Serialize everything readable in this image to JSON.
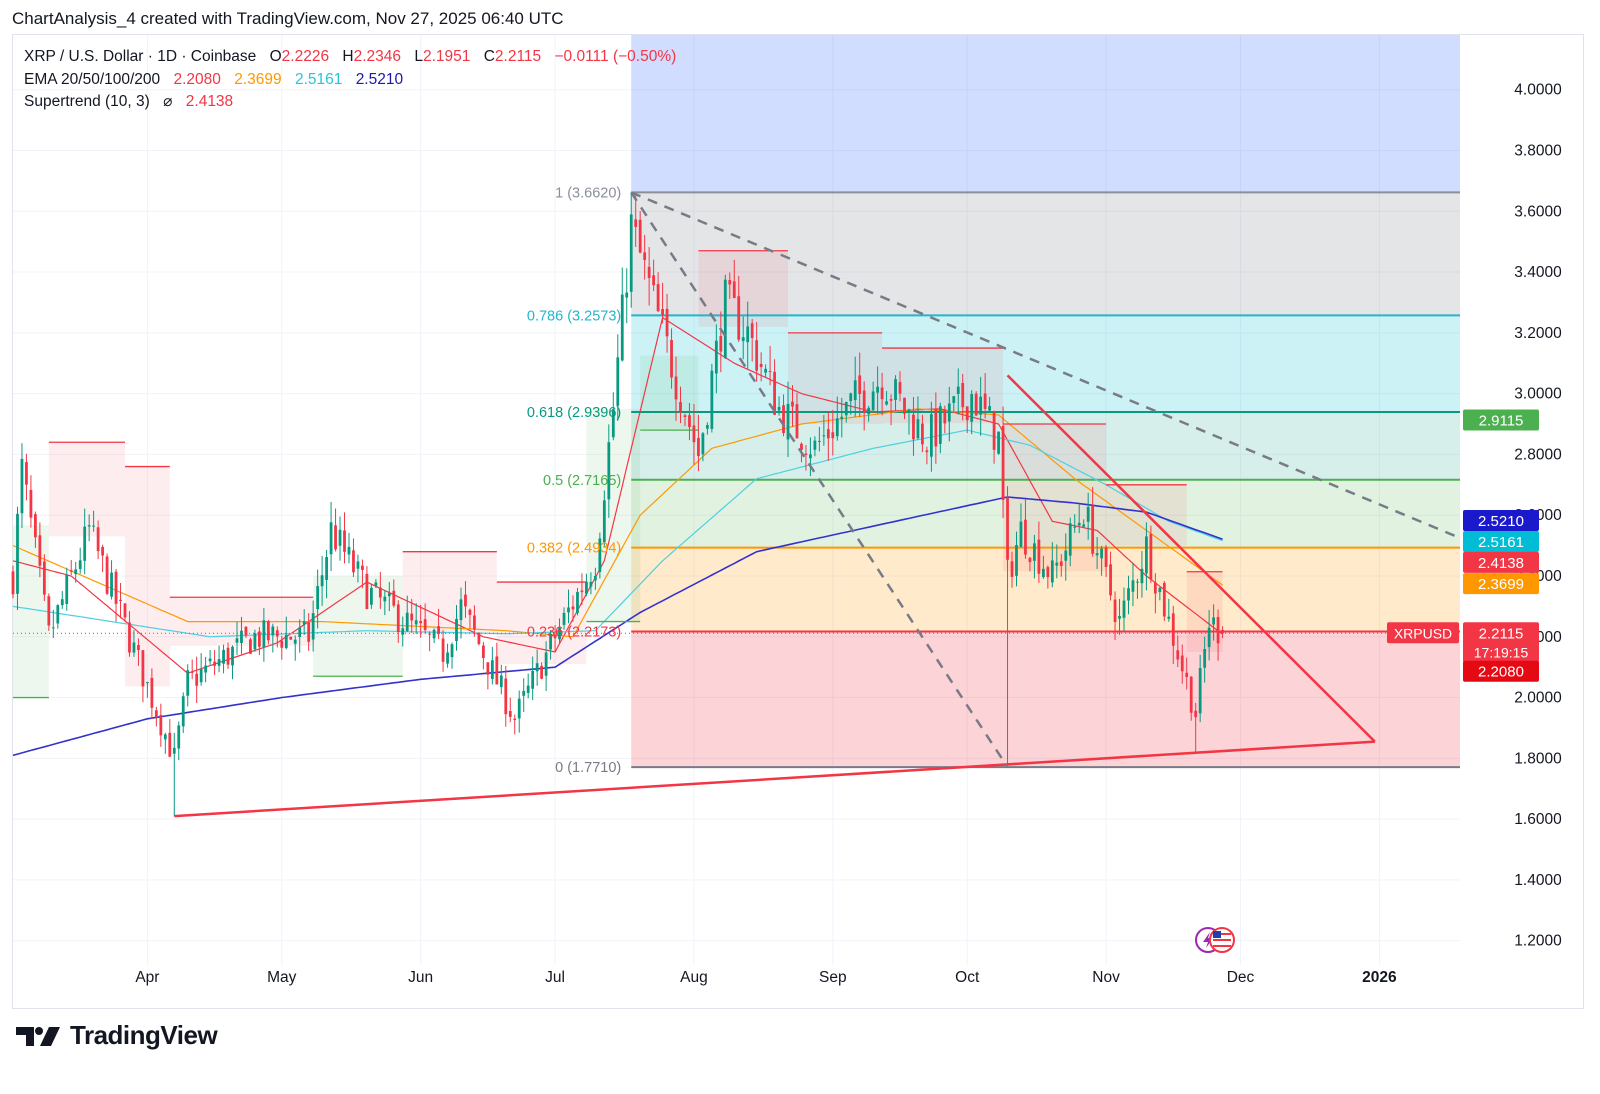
{
  "header": {
    "text": "ChartAnalysis_4 created with TradingView.com, Nov 27, 2025 06:40 UTC"
  },
  "legend": {
    "symbol": "XRP / U.S. Dollar · 1D · Coinbase",
    "o_label": "O",
    "o_val": "2.2226",
    "h_label": "H",
    "h_val": "2.2346",
    "l_label": "L",
    "l_val": "2.1951",
    "c_label": "C",
    "c_val": "2.2115",
    "change": "−0.0111 (−0.50%)",
    "ema_label": "EMA 20/50/100/200",
    "ema20": "2.2080",
    "ema50": "2.3699",
    "ema100": "2.5161",
    "ema200": "2.5210",
    "st_label": "Supertrend (10, 3)",
    "st_symbol": "⌀",
    "st_val": "2.4138"
  },
  "brand": {
    "name": "TradingView",
    "logo_icon": "tradingview-logo-icon"
  },
  "colors": {
    "up": "#089981",
    "down": "#f23645",
    "ema20": "#f23645",
    "ema50": "#ff9800",
    "ema100": "#4dd0e1",
    "ema200": "#3333cc",
    "supertrend_up": "#4caf50",
    "supertrend_down": "#f23645"
  },
  "chart_data": {
    "type": "candlestick",
    "title": "XRP / U.S. Dollar · 1D · Coinbase",
    "ylim": [
      1.12,
      4.18
    ],
    "price_scale": [
      "4.0000",
      "3.8000",
      "3.6000",
      "3.4000",
      "3.2000",
      "3.0000",
      "2.8000",
      "2.6000",
      "2.4000",
      "2.2000",
      "2.0000",
      "1.8000",
      "1.6000",
      "1.4000",
      "1.2000"
    ],
    "x_axis": [
      {
        "label": "Apr",
        "x": "2025-04-01"
      },
      {
        "label": "May",
        "x": "2025-05-01"
      },
      {
        "label": "Jun",
        "x": "2025-06-01"
      },
      {
        "label": "Jul",
        "x": "2025-07-01"
      },
      {
        "label": "Aug",
        "x": "2025-08-01"
      },
      {
        "label": "Sep",
        "x": "2025-09-01"
      },
      {
        "label": "Oct",
        "x": "2025-10-01"
      },
      {
        "label": "Nov",
        "x": "2025-11-01"
      },
      {
        "label": "Dec",
        "x": "2025-12-01"
      },
      {
        "label": "2026",
        "x": "2026-01-01"
      }
    ],
    "date_range": [
      "2025-03-02",
      "2026-01-19"
    ],
    "fib_levels": [
      {
        "ratio": "1",
        "price": 3.662,
        "label": "1 (3.6620)",
        "color": "#8a8f9c"
      },
      {
        "ratio": "0.786",
        "price": 3.2573,
        "label": "0.786 (3.2573)",
        "color": "#22b5cc"
      },
      {
        "ratio": "0.618",
        "price": 2.9396,
        "label": "0.618 (2.9396)",
        "color": "#089981"
      },
      {
        "ratio": "0.5",
        "price": 2.7165,
        "label": "0.5 (2.7165)",
        "color": "#4caf50"
      },
      {
        "ratio": "0.382",
        "price": 2.4934,
        "label": "0.382 (2.4934)",
        "color": "#ff9800"
      },
      {
        "ratio": "0.236",
        "price": 2.2173,
        "label": "0.236 (2.2173)",
        "color": "#f23645"
      },
      {
        "ratio": "0",
        "price": 1.771,
        "label": "0 (1.7710)",
        "color": "#787b86"
      }
    ],
    "fib_start": "2025-07-18",
    "fib_end": "2026-01-19",
    "fib_zones": [
      {
        "from": 3.662,
        "to": 4.18,
        "color": "rgba(41,98,255,0.22)"
      },
      {
        "from": 3.2573,
        "to": 3.662,
        "color": "rgba(120,123,134,0.20)"
      },
      {
        "from": 2.9396,
        "to": 3.2573,
        "color": "rgba(0,188,212,0.20)"
      },
      {
        "from": 2.7165,
        "to": 2.9396,
        "color": "rgba(8,153,129,0.16)"
      },
      {
        "from": 2.4934,
        "to": 2.7165,
        "color": "rgba(76,175,80,0.17)"
      },
      {
        "from": 2.2173,
        "to": 2.4934,
        "color": "rgba(255,152,0,0.20)"
      },
      {
        "from": 1.771,
        "to": 2.2173,
        "color": "rgba(242,54,69,0.22)"
      }
    ],
    "badges": [
      {
        "value": "2.9115",
        "price": 2.9115,
        "color": "#4caf50"
      },
      {
        "value": "2.5210",
        "price": 2.581,
        "color": "#1a1acc"
      },
      {
        "value": "2.5161",
        "price": 2.512,
        "color": "#00bcd4"
      },
      {
        "value": "2.4138",
        "price": 2.443,
        "color": "#f23645"
      },
      {
        "value": "2.3699",
        "price": 2.373,
        "color": "#ff9800"
      },
      {
        "value": "2.2115",
        "price": 2.2115,
        "color": "#f23645",
        "sub": "17:19:15",
        "tag": "XRPUSD"
      },
      {
        "value": "2.2080",
        "price": 2.085,
        "color": "#e50914"
      }
    ],
    "trendlines": [
      {
        "from": [
          "2025-04-07",
          1.61
        ],
        "to": [
          "2025-12-31",
          1.855
        ],
        "color": "#f23645",
        "style": "solid"
      },
      {
        "from": [
          "2025-10-10",
          3.06
        ],
        "to": [
          "2025-12-31",
          1.855
        ],
        "color": "#f23645",
        "style": "solid"
      },
      {
        "from": [
          "2025-07-18",
          3.662
        ],
        "to": [
          "2026-01-19",
          2.525
        ],
        "color": "#787b86",
        "style": "dashed"
      },
      {
        "from": [
          "2025-07-18",
          3.662
        ],
        "to": [
          "2025-10-10",
          1.771
        ],
        "color": "#787b86",
        "style": "dashed"
      }
    ],
    "keypoints": [
      {
        "x": "2025-03-02",
        "y": 2.4
      },
      {
        "x": "2025-03-04",
        "y": 2.75
      },
      {
        "x": "2025-03-10",
        "y": 2.2
      },
      {
        "x": "2025-03-19",
        "y": 2.55
      },
      {
        "x": "2025-04-07",
        "y": 1.8
      },
      {
        "x": "2025-04-10",
        "y": 2.05
      },
      {
        "x": "2025-04-25",
        "y": 2.2
      },
      {
        "x": "2025-05-07",
        "y": 2.2
      },
      {
        "x": "2025-05-12",
        "y": 2.55
      },
      {
        "x": "2025-05-20",
        "y": 2.35
      },
      {
        "x": "2025-06-06",
        "y": 2.15
      },
      {
        "x": "2025-06-10",
        "y": 2.3
      },
      {
        "x": "2025-06-22",
        "y": 1.93
      },
      {
        "x": "2025-07-01",
        "y": 2.2
      },
      {
        "x": "2025-07-10",
        "y": 2.45
      },
      {
        "x": "2025-07-14",
        "y": 2.95
      },
      {
        "x": "2025-07-18",
        "y": 3.55
      },
      {
        "x": "2025-07-23",
        "y": 3.3
      },
      {
        "x": "2025-08-02",
        "y": 2.8
      },
      {
        "x": "2025-08-08",
        "y": 3.3
      },
      {
        "x": "2025-08-13",
        "y": 3.2
      },
      {
        "x": "2025-08-20",
        "y": 2.95
      },
      {
        "x": "2025-08-28",
        "y": 2.82
      },
      {
        "x": "2025-09-06",
        "y": 2.98
      },
      {
        "x": "2025-09-12",
        "y": 3.05
      },
      {
        "x": "2025-09-22",
        "y": 2.85
      },
      {
        "x": "2025-10-02",
        "y": 3.0
      },
      {
        "x": "2025-10-08",
        "y": 2.85
      },
      {
        "x": "2025-10-10",
        "y": 2.4
      },
      {
        "x": "2025-10-13",
        "y": 2.55
      },
      {
        "x": "2025-10-20",
        "y": 2.4
      },
      {
        "x": "2025-10-27",
        "y": 2.62
      },
      {
        "x": "2025-11-04",
        "y": 2.25
      },
      {
        "x": "2025-11-10",
        "y": 2.5
      },
      {
        "x": "2025-11-16",
        "y": 2.2
      },
      {
        "x": "2025-11-21",
        "y": 1.95
      },
      {
        "x": "2025-11-24",
        "y": 2.25
      },
      {
        "x": "2025-11-27",
        "y": 2.21
      }
    ],
    "ema_keypoints": {
      "ema20": [
        {
          "x": "2025-03-02",
          "y": 2.45
        },
        {
          "x": "2025-03-15",
          "y": 2.4
        },
        {
          "x": "2025-04-10",
          "y": 2.08
        },
        {
          "x": "2025-04-30",
          "y": 2.18
        },
        {
          "x": "2025-05-20",
          "y": 2.38
        },
        {
          "x": "2025-06-15",
          "y": 2.2
        },
        {
          "x": "2025-07-01",
          "y": 2.15
        },
        {
          "x": "2025-07-12",
          "y": 2.45
        },
        {
          "x": "2025-07-25",
          "y": 3.25
        },
        {
          "x": "2025-08-10",
          "y": 3.1
        },
        {
          "x": "2025-08-25",
          "y": 3.0
        },
        {
          "x": "2025-09-10",
          "y": 2.94
        },
        {
          "x": "2025-09-25",
          "y": 2.95
        },
        {
          "x": "2025-10-08",
          "y": 2.9
        },
        {
          "x": "2025-10-20",
          "y": 2.58
        },
        {
          "x": "2025-10-30",
          "y": 2.55
        },
        {
          "x": "2025-11-10",
          "y": 2.4
        },
        {
          "x": "2025-11-27",
          "y": 2.208
        }
      ],
      "ema50": [
        {
          "x": "2025-03-02",
          "y": 2.5
        },
        {
          "x": "2025-04-10",
          "y": 2.25
        },
        {
          "x": "2025-05-10",
          "y": 2.25
        },
        {
          "x": "2025-06-20",
          "y": 2.22
        },
        {
          "x": "2025-07-05",
          "y": 2.2
        },
        {
          "x": "2025-07-20",
          "y": 2.6
        },
        {
          "x": "2025-08-05",
          "y": 2.82
        },
        {
          "x": "2025-08-25",
          "y": 2.9
        },
        {
          "x": "2025-09-20",
          "y": 2.95
        },
        {
          "x": "2025-10-08",
          "y": 2.93
        },
        {
          "x": "2025-10-25",
          "y": 2.72
        },
        {
          "x": "2025-11-10",
          "y": 2.55
        },
        {
          "x": "2025-11-27",
          "y": 2.37
        }
      ],
      "ema100": [
        {
          "x": "2025-03-02",
          "y": 2.3
        },
        {
          "x": "2025-04-15",
          "y": 2.2
        },
        {
          "x": "2025-05-20",
          "y": 2.22
        },
        {
          "x": "2025-06-20",
          "y": 2.21
        },
        {
          "x": "2025-07-10",
          "y": 2.22
        },
        {
          "x": "2025-07-25",
          "y": 2.45
        },
        {
          "x": "2025-08-15",
          "y": 2.72
        },
        {
          "x": "2025-09-10",
          "y": 2.82
        },
        {
          "x": "2025-10-01",
          "y": 2.88
        },
        {
          "x": "2025-10-15",
          "y": 2.83
        },
        {
          "x": "2025-11-01",
          "y": 2.7
        },
        {
          "x": "2025-11-15",
          "y": 2.58
        },
        {
          "x": "2025-11-27",
          "y": 2.516
        }
      ],
      "ema200": [
        {
          "x": "2025-03-02",
          "y": 1.81
        },
        {
          "x": "2025-04-01",
          "y": 1.93
        },
        {
          "x": "2025-05-01",
          "y": 2.0
        },
        {
          "x": "2025-06-01",
          "y": 2.06
        },
        {
          "x": "2025-07-01",
          "y": 2.1
        },
        {
          "x": "2025-07-20",
          "y": 2.28
        },
        {
          "x": "2025-08-15",
          "y": 2.48
        },
        {
          "x": "2025-09-15",
          "y": 2.58
        },
        {
          "x": "2025-10-10",
          "y": 2.66
        },
        {
          "x": "2025-10-25",
          "y": 2.64
        },
        {
          "x": "2025-11-10",
          "y": 2.61
        },
        {
          "x": "2025-11-27",
          "y": 2.521
        }
      ]
    },
    "supertrend": [
      {
        "from": "2025-03-02",
        "to": "2025-03-10",
        "value": 2.0,
        "dir": "up"
      },
      {
        "from": "2025-03-10",
        "to": "2025-03-27",
        "value": 2.84,
        "dir": "down"
      },
      {
        "from": "2025-03-27",
        "to": "2025-04-06",
        "value": 2.76,
        "dir": "down"
      },
      {
        "from": "2025-04-06",
        "to": "2025-05-08",
        "value": 2.33,
        "dir": "down"
      },
      {
        "from": "2025-05-08",
        "to": "2025-05-28",
        "value": 2.07,
        "dir": "up"
      },
      {
        "from": "2025-05-28",
        "to": "2025-06-18",
        "value": 2.48,
        "dir": "down"
      },
      {
        "from": "2025-06-18",
        "to": "2025-07-08",
        "value": 2.38,
        "dir": "down"
      },
      {
        "from": "2025-07-08",
        "to": "2025-07-20",
        "value": 2.25,
        "dir": "up"
      },
      {
        "from": "2025-07-20",
        "to": "2025-08-02",
        "value": 2.88,
        "dir": "up"
      },
      {
        "from": "2025-08-02",
        "to": "2025-08-22",
        "value": 3.47,
        "dir": "down"
      },
      {
        "from": "2025-08-22",
        "to": "2025-09-12",
        "value": 3.2,
        "dir": "down"
      },
      {
        "from": "2025-09-12",
        "to": "2025-10-09",
        "value": 3.15,
        "dir": "down"
      },
      {
        "from": "2025-10-09",
        "to": "2025-11-01",
        "value": 2.9,
        "dir": "down"
      },
      {
        "from": "2025-11-01",
        "to": "2025-11-19",
        "value": 2.7,
        "dir": "down"
      },
      {
        "from": "2025-11-19",
        "to": "2025-11-27",
        "value": 2.414,
        "dir": "down"
      }
    ]
  }
}
